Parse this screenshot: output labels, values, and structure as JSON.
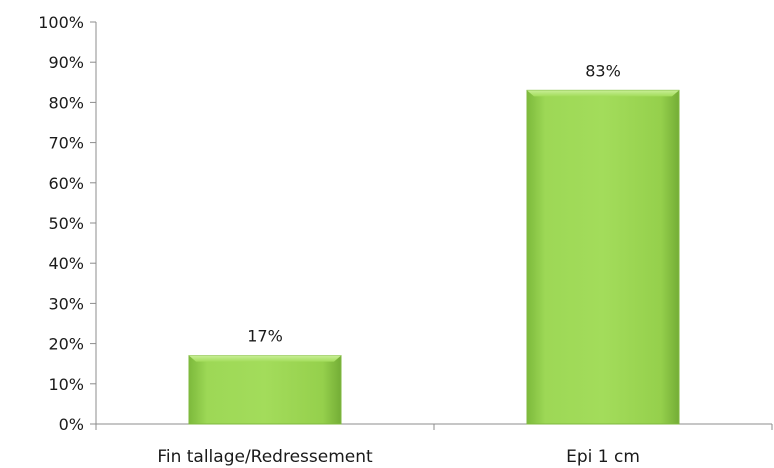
{
  "chart_data": {
    "type": "bar",
    "categories": [
      "Fin tallage/Redressement",
      "Epi 1 cm"
    ],
    "values": [
      17,
      83
    ],
    "data_labels": [
      "17%",
      "83%"
    ],
    "ylim": [
      0,
      100
    ],
    "yticks": [
      0,
      10,
      20,
      30,
      40,
      50,
      60,
      70,
      80,
      90,
      100
    ],
    "ytick_labels": [
      "0%",
      "10%",
      "20%",
      "30%",
      "40%",
      "50%",
      "60%",
      "70%",
      "80%",
      "90%",
      "100%"
    ],
    "title": "",
    "xlabel": "",
    "ylabel": "",
    "grid": false,
    "legend": "none",
    "bar_color": "#92d050",
    "bar_edge_color": "#7fb83f"
  }
}
